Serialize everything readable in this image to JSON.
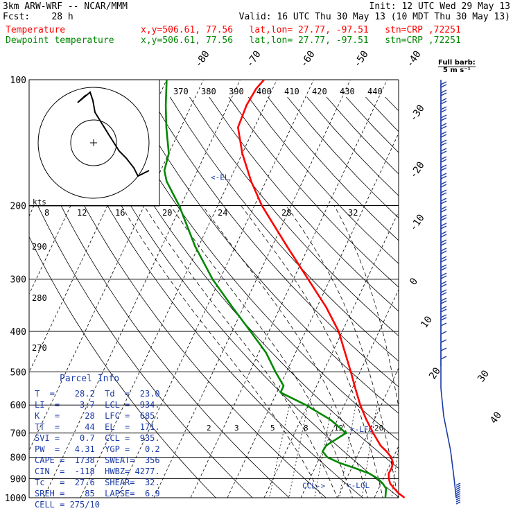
{
  "header": {
    "line1_left": "3km ARW-WRF -- NCAR/MMM",
    "line1_right": "Init: 12 UTC Wed 29 May 13",
    "line2_left": "Fcst:    28 h",
    "line2_right": "Valid: 16 UTC Thu 30 May 13 (10 MDT Thu 30 May 13)",
    "temp_label": "Temperature",
    "temp_loc": "x,y=506.61, 77.56   lat,lon= 27.77, -97.51   stn=CRP ,72251",
    "dew_label": "Dewpoint temperature",
    "dew_loc": "x,y=506.61, 77.56   lat,lon= 27.77, -97.51   stn=CRP ,72251"
  },
  "colors": {
    "temperature": "#ff0000",
    "dewpoint": "#008800",
    "isobar": "#000000",
    "parcel_text": "#1a3aa8",
    "barb": "#1a3aa8"
  },
  "barb_label": {
    "line1": "Full barb:",
    "line2": "5 m s⁻¹"
  },
  "chart_data": {
    "type": "line",
    "title": "",
    "xlabel": "",
    "ylabel": "",
    "y_scale": "log-pressure",
    "ylim": [
      1000,
      100
    ],
    "pressure_ticks": [
      {
        "p": 100,
        "label": "100"
      },
      {
        "p": 200,
        "label": "200"
      },
      {
        "p": 300,
        "label": "300"
      },
      {
        "p": 400,
        "label": "400"
      },
      {
        "p": 500,
        "label": "500"
      },
      {
        "p": 600,
        "label": "600"
      },
      {
        "p": 700,
        "label": "700"
      },
      {
        "p": 800,
        "label": "800"
      },
      {
        "p": 900,
        "label": "900"
      },
      {
        "p": 1000,
        "label": "1000"
      }
    ],
    "isotherm_labels": [
      "-80",
      "-70",
      "-60",
      "-50",
      "-40",
      "-30",
      "-20",
      "-10",
      "0",
      "10",
      "20",
      "30",
      "40"
    ],
    "theta_labels": [
      "370",
      "380",
      "390",
      "400",
      "410",
      "420",
      "430",
      "440"
    ],
    "mixing_ratio_labels": [
      "2",
      "3",
      "5",
      "8",
      "12",
      "20"
    ],
    "hodograph": {
      "units": "kts",
      "ring_labels": [
        "8",
        "12",
        "16",
        "20",
        "24",
        "28",
        "32"
      ],
      "side_labels": [
        "290",
        "280",
        "270"
      ]
    },
    "level_annotations": [
      {
        "label": "<-EL",
        "p": 171
      },
      {
        "label": "<-LFC",
        "p": 685
      },
      {
        "label": "CCL->",
        "p": 935
      },
      {
        "label": "<-LCL",
        "p": 934
      }
    ],
    "series": [
      {
        "name": "Temperature",
        "points": [
          {
            "p": 1000,
            "t": 28.2
          },
          {
            "p": 975,
            "t": 26.0
          },
          {
            "p": 950,
            "t": 24.2
          },
          {
            "p": 925,
            "t": 22.5
          },
          {
            "p": 900,
            "t": 21.5
          },
          {
            "p": 875,
            "t": 20.8
          },
          {
            "p": 850,
            "t": 20.9
          },
          {
            "p": 825,
            "t": 20.6
          },
          {
            "p": 800,
            "t": 19.4
          },
          {
            "p": 775,
            "t": 17.4
          },
          {
            "p": 750,
            "t": 15.0
          },
          {
            "p": 700,
            "t": 11.4
          },
          {
            "p": 650,
            "t": 7.8
          },
          {
            "p": 600,
            "t": 4.3
          },
          {
            "p": 550,
            "t": 1.0
          },
          {
            "p": 500,
            "t": -2.5
          },
          {
            "p": 450,
            "t": -6.5
          },
          {
            "p": 400,
            "t": -11.0
          },
          {
            "p": 350,
            "t": -17.5
          },
          {
            "p": 300,
            "t": -26.0
          },
          {
            "p": 250,
            "t": -36.0
          },
          {
            "p": 200,
            "t": -48.0
          },
          {
            "p": 175,
            "t": -54.0
          },
          {
            "p": 150,
            "t": -60.0
          },
          {
            "p": 130,
            "t": -64.5
          },
          {
            "p": 115,
            "t": -65.0
          },
          {
            "p": 105,
            "t": -64.5
          },
          {
            "p": 100,
            "t": -63.5
          }
        ]
      },
      {
        "name": "Dewpoint temperature",
        "points": [
          {
            "p": 1000,
            "t": 23.0
          },
          {
            "p": 975,
            "t": 22.5
          },
          {
            "p": 950,
            "t": 22.0
          },
          {
            "p": 925,
            "t": 20.5
          },
          {
            "p": 900,
            "t": 18.5
          },
          {
            "p": 875,
            "t": 15.5
          },
          {
            "p": 850,
            "t": 11.0
          },
          {
            "p": 825,
            "t": 6.0
          },
          {
            "p": 800,
            "t": 2.0
          },
          {
            "p": 775,
            "t": 0.0
          },
          {
            "p": 750,
            "t": 0.2
          },
          {
            "p": 700,
            "t": 4.0
          },
          {
            "p": 650,
            "t": -2.0
          },
          {
            "p": 600,
            "t": -10.5
          },
          {
            "p": 560,
            "t": -19.0
          },
          {
            "p": 540,
            "t": -19.0
          },
          {
            "p": 500,
            "t": -23.0
          },
          {
            "p": 450,
            "t": -28.0
          },
          {
            "p": 400,
            "t": -35.0
          },
          {
            "p": 350,
            "t": -43.0
          },
          {
            "p": 300,
            "t": -52.0
          },
          {
            "p": 250,
            "t": -61.0
          },
          {
            "p": 200,
            "t": -70.5
          },
          {
            "p": 175,
            "t": -77.0
          },
          {
            "p": 165,
            "t": -79.0
          },
          {
            "p": 150,
            "t": -80.0
          },
          {
            "p": 130,
            "t": -84.0
          },
          {
            "p": 115,
            "t": -87.0
          },
          {
            "p": 100,
            "t": -90.0
          }
        ]
      }
    ],
    "parcel_info": {
      "title": "Parcel Info",
      "rows": [
        "T  =    28.2  Td  =  23.0",
        "LI  =   -3.7  LCL =  934.",
        "K   =     28  LFC =  685.",
        "TT  =     44  EL  =  171.",
        "SVI =    0.7  CCL =  935.",
        "PW  =   4.31  YGP =   0.2",
        "CAPE =  1738  SWEAT=  356",
        "CIN  =  -118  HWBZ= 4277.",
        "Tc   =  27.6  SHEAR=  32.",
        "SREH =    85  LAPSE=  6.9",
        "CELL = 275/10"
      ]
    }
  }
}
